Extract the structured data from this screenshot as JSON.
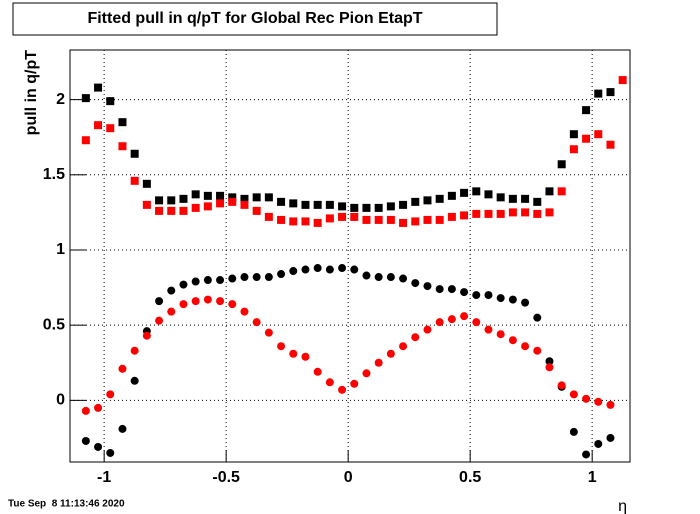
{
  "chart_data": {
    "type": "scatter",
    "title": "Fitted pull in q/pT for Global Rec Pion EtapT",
    "y_label": "pull in q/pT",
    "x_label": "η",
    "timestamp": "Tue Sep  8 11:13:46 2020",
    "x": [
      -1.075,
      -1.025,
      -0.975,
      -0.925,
      -0.875,
      -0.825,
      -0.775,
      -0.725,
      -0.675,
      -0.625,
      -0.575,
      -0.525,
      -0.475,
      -0.425,
      -0.375,
      -0.325,
      -0.275,
      -0.225,
      -0.175,
      -0.125,
      -0.075,
      -0.025,
      0.025,
      0.075,
      0.125,
      0.175,
      0.225,
      0.275,
      0.325,
      0.375,
      0.425,
      0.475,
      0.525,
      0.575,
      0.625,
      0.675,
      0.725,
      0.775,
      0.825,
      0.875,
      0.925,
      0.975,
      1.025,
      1.075,
      1.125
    ],
    "series": [
      {
        "color": "#000000",
        "marker": "square",
        "values": [
          2.01,
          2.08,
          1.99,
          1.85,
          1.64,
          1.44,
          1.33,
          1.33,
          1.34,
          1.37,
          1.36,
          1.36,
          1.35,
          1.34,
          1.35,
          1.35,
          1.32,
          1.31,
          1.3,
          1.3,
          1.3,
          1.29,
          1.28,
          1.28,
          1.28,
          1.29,
          1.3,
          1.32,
          1.33,
          1.34,
          1.36,
          1.38,
          1.39,
          1.37,
          1.35,
          1.34,
          1.34,
          1.32,
          1.39,
          1.57,
          1.77,
          1.93,
          2.04,
          2.05,
          null
        ]
      },
      {
        "color": "#ff0000",
        "marker": "square",
        "values": [
          1.73,
          1.83,
          1.81,
          1.69,
          1.46,
          1.3,
          1.26,
          1.26,
          1.26,
          1.28,
          1.29,
          1.31,
          1.32,
          1.3,
          1.26,
          1.22,
          1.2,
          1.19,
          1.19,
          1.18,
          1.21,
          1.22,
          1.22,
          1.2,
          1.2,
          1.2,
          1.18,
          1.19,
          1.2,
          1.2,
          1.22,
          1.23,
          1.24,
          1.24,
          1.24,
          1.25,
          1.25,
          1.24,
          1.25,
          1.39,
          1.67,
          1.74,
          1.77,
          1.7,
          2.13
        ]
      },
      {
        "color": "#000000",
        "marker": "circle",
        "values": [
          -0.27,
          -0.31,
          -0.35,
          -0.19,
          0.13,
          0.46,
          0.66,
          0.73,
          0.77,
          0.79,
          0.8,
          0.8,
          0.81,
          0.82,
          0.82,
          0.82,
          0.84,
          0.86,
          0.87,
          0.88,
          0.87,
          0.88,
          0.87,
          0.83,
          0.82,
          0.82,
          0.81,
          0.78,
          0.76,
          0.74,
          0.74,
          0.72,
          0.7,
          0.7,
          0.68,
          0.67,
          0.65,
          0.55,
          0.26,
          0.09,
          -0.21,
          -0.36,
          -0.29,
          -0.25,
          null
        ]
      },
      {
        "color": "#ff0000",
        "marker": "circle",
        "values": [
          -0.07,
          -0.05,
          0.04,
          0.21,
          0.33,
          0.43,
          0.53,
          0.59,
          0.64,
          0.66,
          0.67,
          0.66,
          0.64,
          0.59,
          0.52,
          0.45,
          0.36,
          0.31,
          0.29,
          0.19,
          0.12,
          0.07,
          0.11,
          0.18,
          0.25,
          0.31,
          0.36,
          0.42,
          0.47,
          0.52,
          0.54,
          0.56,
          0.52,
          0.47,
          0.44,
          0.4,
          0.36,
          0.33,
          0.22,
          0.1,
          0.04,
          0.01,
          -0.01,
          -0.03,
          null
        ]
      }
    ],
    "xlim": [
      -1.14,
      1.155
    ],
    "ylim": [
      -0.41,
      2.33
    ],
    "xticks": [
      -1,
      -0.5,
      0,
      0.5,
      1
    ],
    "yticks": [
      0,
      0.5,
      1,
      1.5,
      2
    ],
    "grid": true
  }
}
